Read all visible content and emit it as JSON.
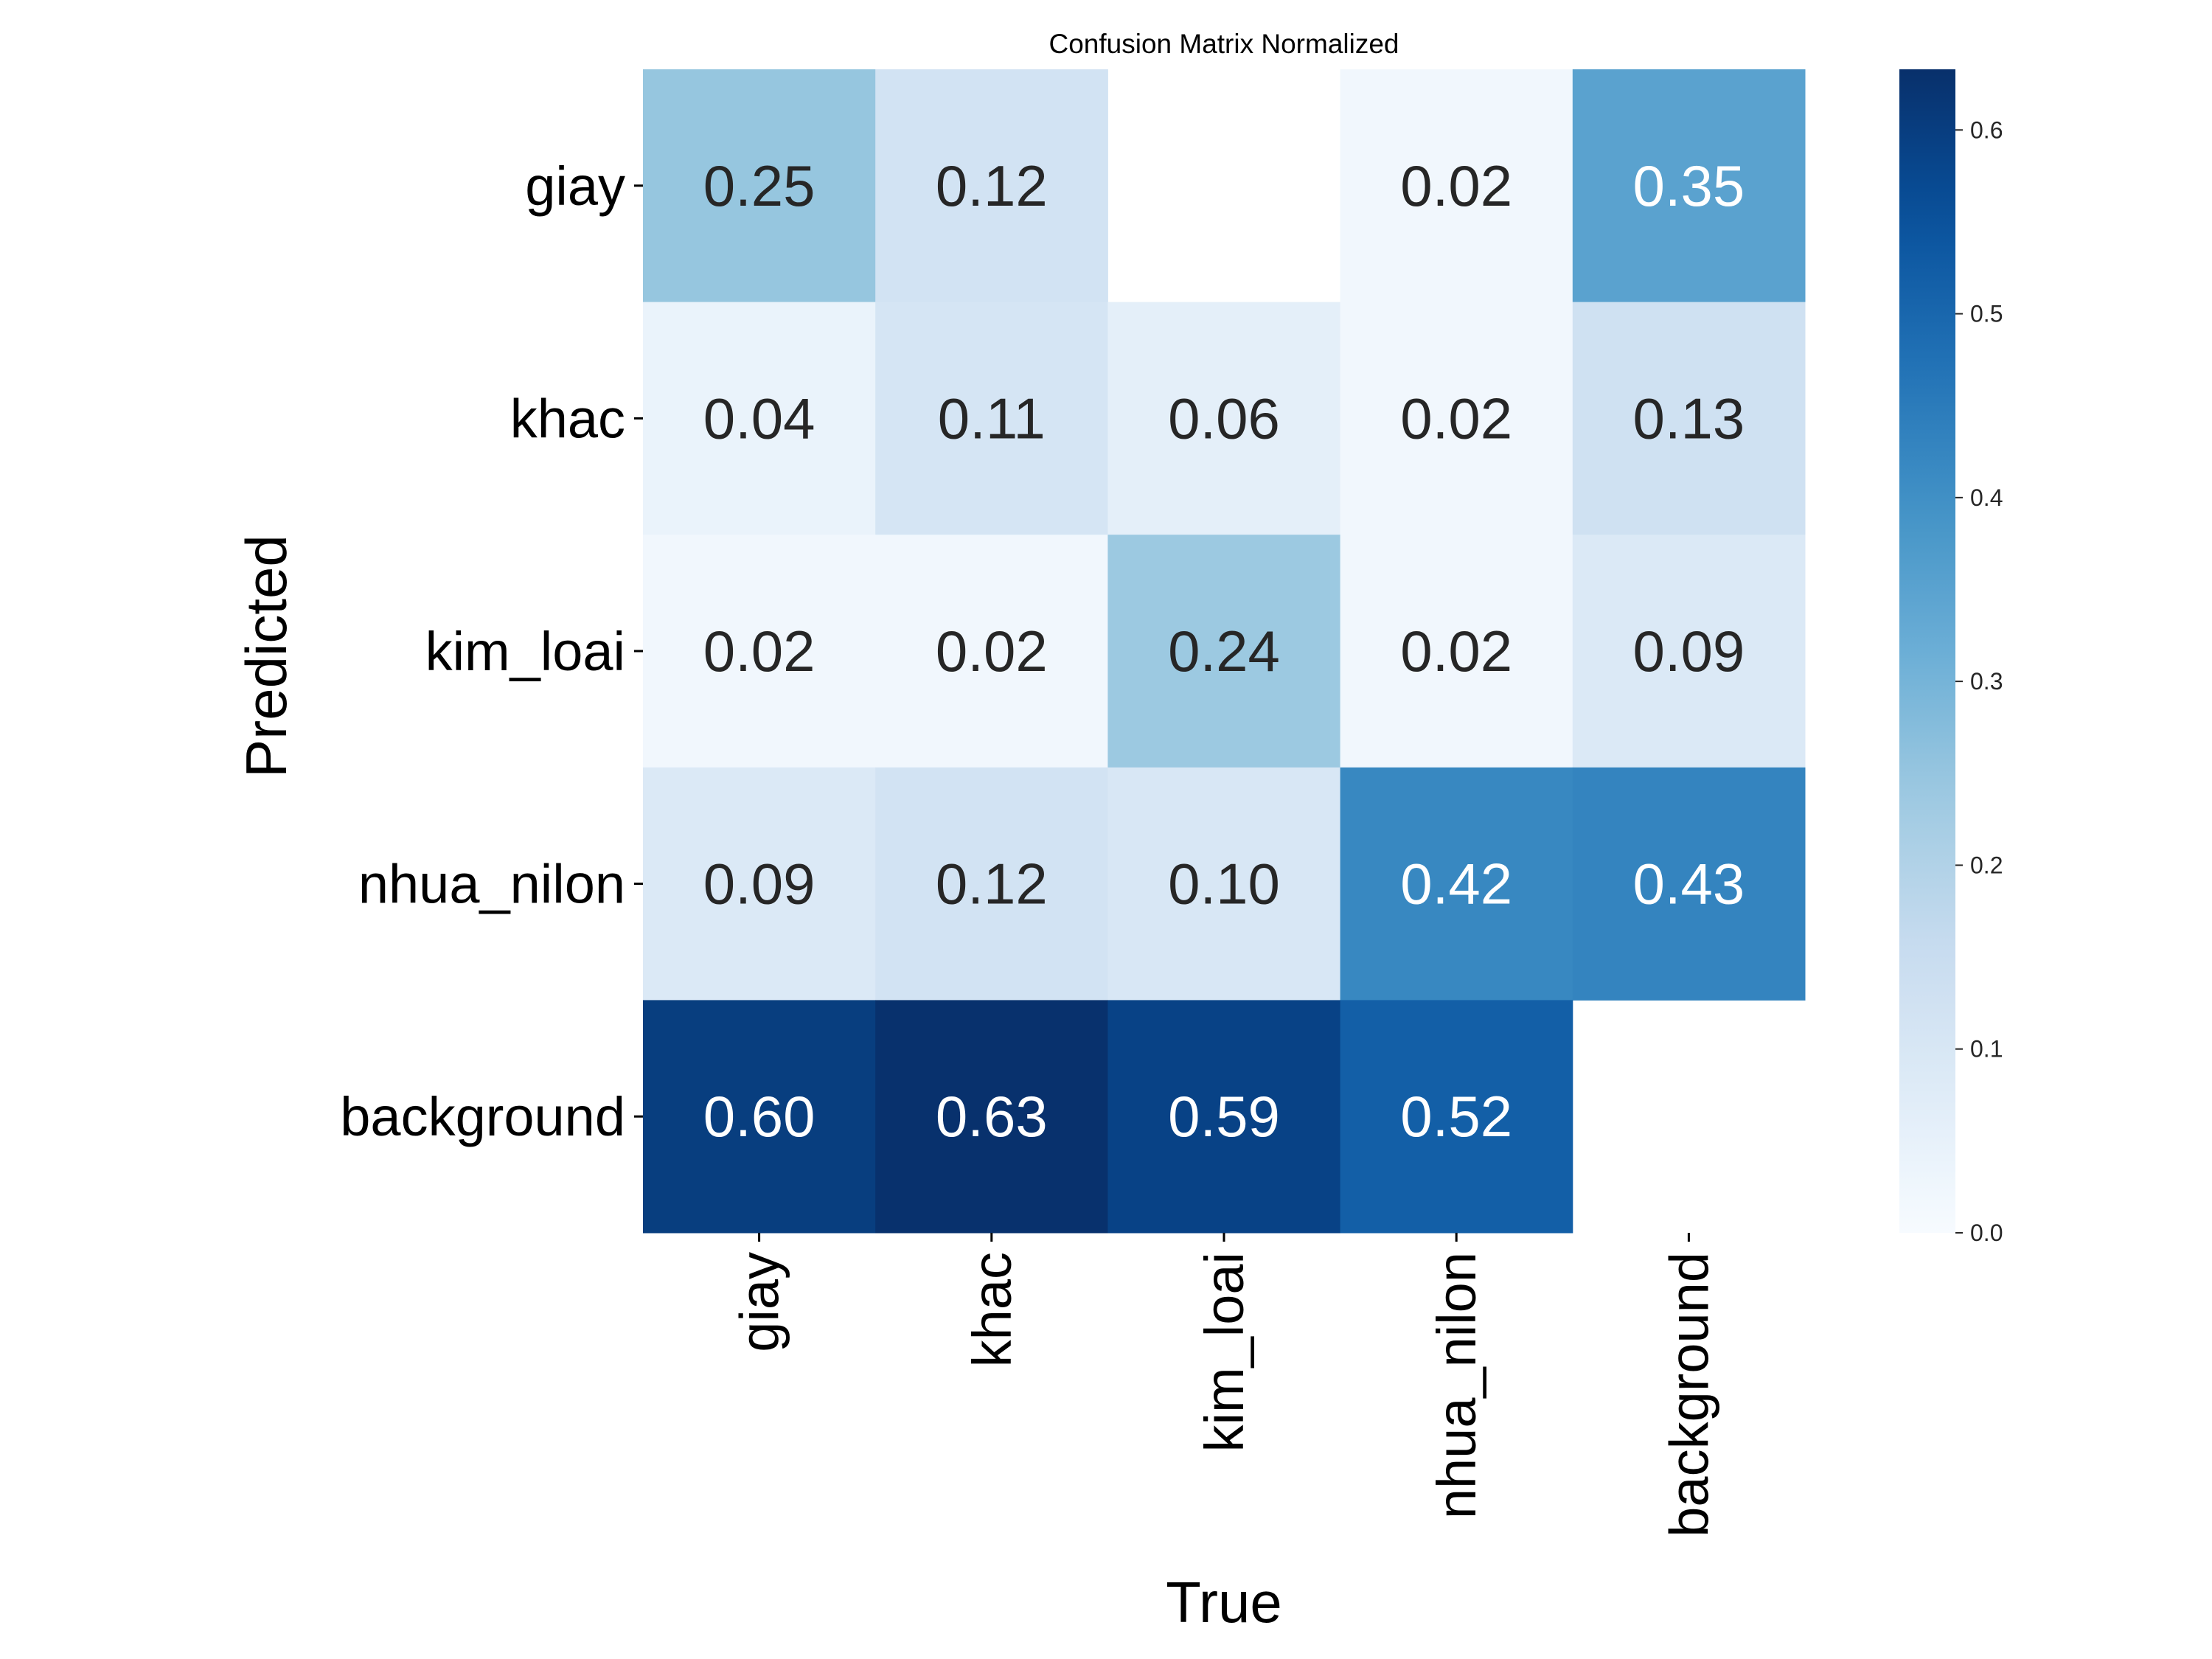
{
  "chart_data": {
    "type": "heatmap",
    "title": "Confusion Matrix Normalized",
    "xlabel": "True",
    "ylabel": "Predicted",
    "x_categories": [
      "giay",
      "khac",
      "kim_loai",
      "nhua_nilon",
      "background"
    ],
    "y_categories": [
      "giay",
      "khac",
      "kim_loai",
      "nhua_nilon",
      "background"
    ],
    "values": [
      [
        0.25,
        0.12,
        null,
        0.02,
        0.35
      ],
      [
        0.04,
        0.11,
        0.06,
        0.02,
        0.13
      ],
      [
        0.02,
        0.02,
        0.24,
        0.02,
        0.09
      ],
      [
        0.09,
        0.12,
        0.1,
        0.42,
        0.43
      ],
      [
        0.6,
        0.63,
        0.59,
        0.52,
        null
      ]
    ],
    "cell_labels": [
      [
        "0.25",
        "0.12",
        "",
        "0.02",
        "0.35"
      ],
      [
        "0.04",
        "0.11",
        "0.06",
        "0.02",
        "0.13"
      ],
      [
        "0.02",
        "0.02",
        "0.24",
        "0.02",
        "0.09"
      ],
      [
        "0.09",
        "0.12",
        "0.10",
        "0.42",
        "0.43"
      ],
      [
        "0.60",
        "0.63",
        "0.59",
        "0.52",
        ""
      ]
    ],
    "colormap": "Blues",
    "colorbar": {
      "range": [
        0.0,
        0.633
      ],
      "ticks": [
        0.0,
        0.1,
        0.2,
        0.3,
        0.4,
        0.5,
        0.6
      ],
      "tick_labels": [
        "0.0",
        "0.1",
        "0.2",
        "0.3",
        "0.4",
        "0.5",
        "0.6"
      ],
      "placement": "right"
    },
    "grid": false
  }
}
